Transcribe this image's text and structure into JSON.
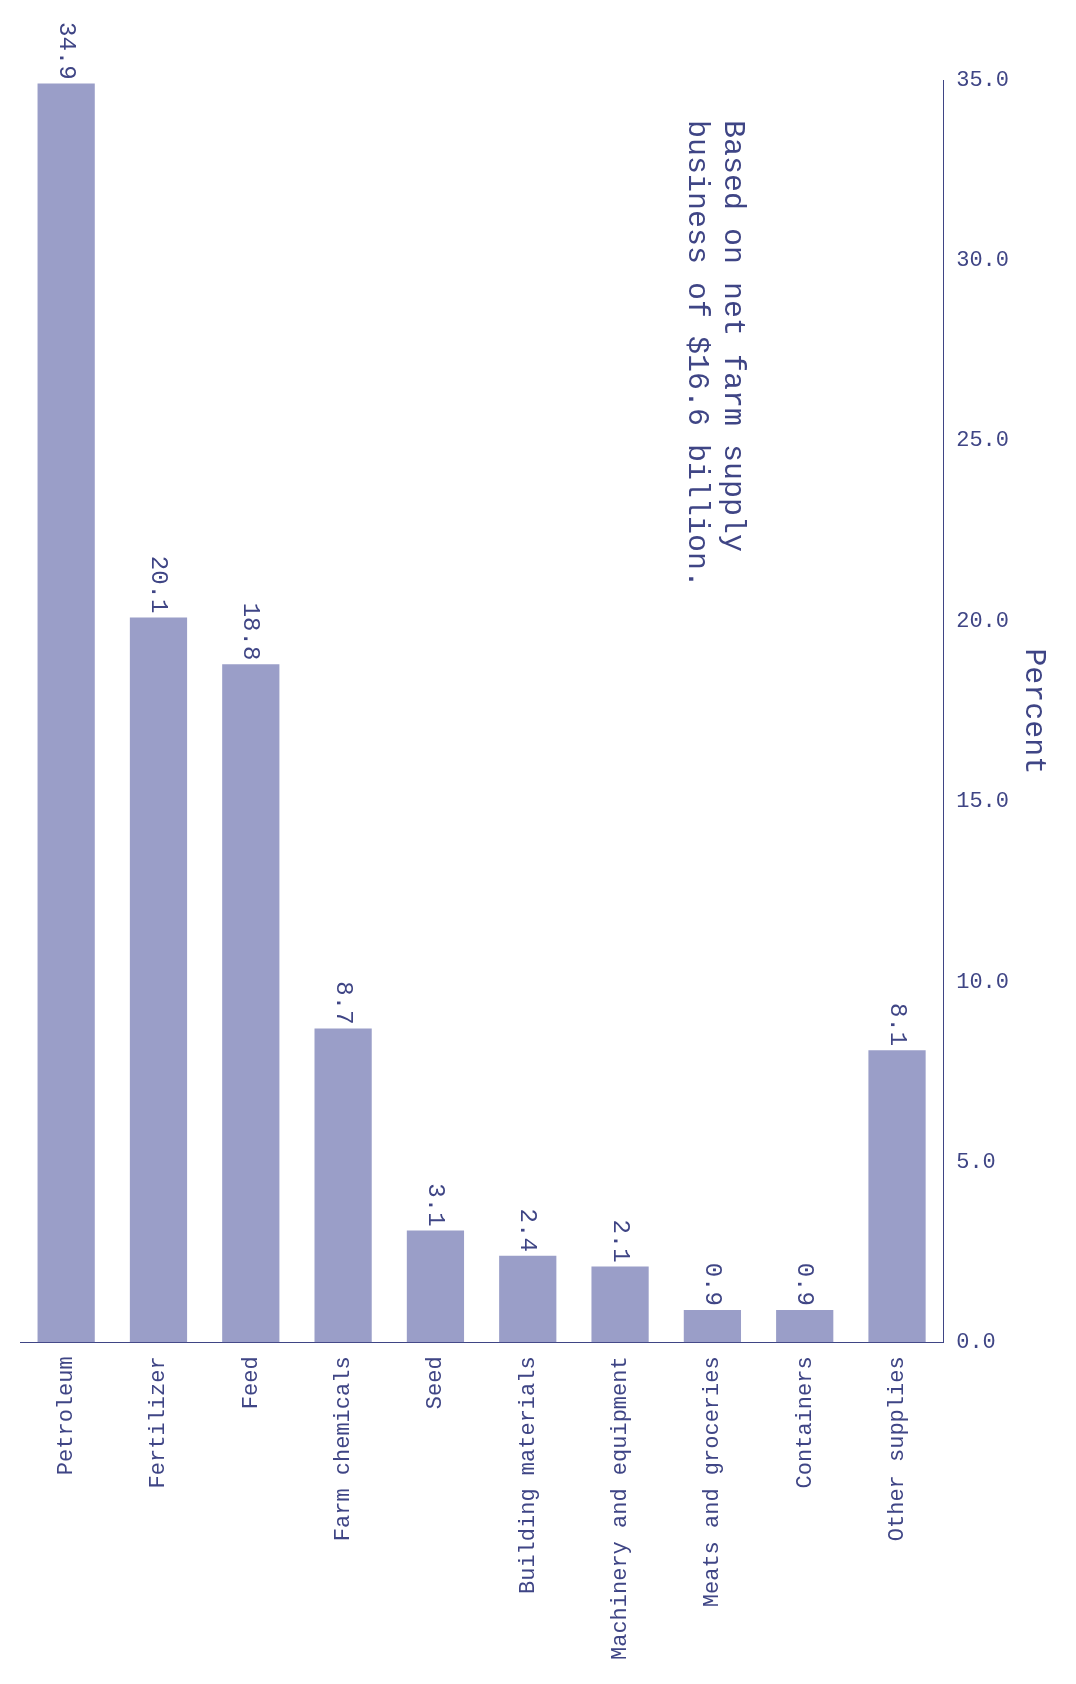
{
  "chart_data": {
    "type": "bar",
    "categories": [
      "Petroleum",
      "Fertilizer",
      "Feed",
      "Farm chemicals",
      "Seed",
      "Building materials",
      "Machinery and equipment",
      "Meats and groceries",
      "Containers",
      "Other supplies"
    ],
    "values": [
      34.9,
      20.1,
      18.8,
      8.7,
      3.1,
      2.4,
      2.1,
      0.9,
      0.9,
      8.1
    ],
    "color": "#9a9ec8",
    "ylabel": "Percent",
    "ylim": [
      0,
      35
    ],
    "yticks": [
      {
        "value": 0,
        "label": "0.0"
      },
      {
        "value": 5,
        "label": "5.0"
      },
      {
        "value": 10,
        "label": "10.0"
      },
      {
        "value": 15,
        "label": "15.0"
      },
      {
        "value": 20,
        "label": "20.0"
      },
      {
        "value": 25,
        "label": "25.0"
      },
      {
        "value": 30,
        "label": "30.0"
      },
      {
        "value": 35,
        "label": "35.0"
      }
    ],
    "data_labels": true,
    "grid": false,
    "legend": false,
    "annotations": [
      "Based on net farm supply business of $16.6 billion."
    ]
  }
}
